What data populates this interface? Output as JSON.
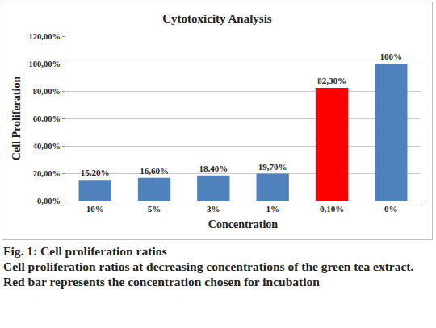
{
  "chart_data": {
    "type": "bar",
    "title": "Cytotoxicity Analysis",
    "x_label": "Concentration",
    "y_label": "Cell Proliferation",
    "categories": [
      "10%",
      "5%",
      "3%",
      "1%",
      "0,10%",
      "0%"
    ],
    "values": [
      15.2,
      16.6,
      18.4,
      19.7,
      82.3,
      100
    ],
    "value_labels": [
      "15,20%",
      "16,60%",
      "18,40%",
      "19,70%",
      "82,30%",
      "100%"
    ],
    "colors": [
      "#4f81bd",
      "#4f81bd",
      "#4f81bd",
      "#4f81bd",
      "#ff0000",
      "#4f81bd"
    ],
    "ylim": [
      0,
      120
    ],
    "yticks": [
      {
        "value": 0,
        "label": "0,00%"
      },
      {
        "value": 20,
        "label": "20,00%"
      },
      {
        "value": 40,
        "label": "40,00%"
      },
      {
        "value": 60,
        "label": "60,00%"
      },
      {
        "value": 80,
        "label": "80,00%"
      },
      {
        "value": 100,
        "label": "100,00%"
      },
      {
        "value": 120,
        "label": "120,00%"
      }
    ],
    "grid": true,
    "data_labels": true
  },
  "caption": {
    "title": "Fig. 1: Cell proliferation ratios",
    "text": "Cell proliferation ratios at decreasing concentrations of the green tea extract. Red bar represents the concentration chosen for incubation"
  }
}
